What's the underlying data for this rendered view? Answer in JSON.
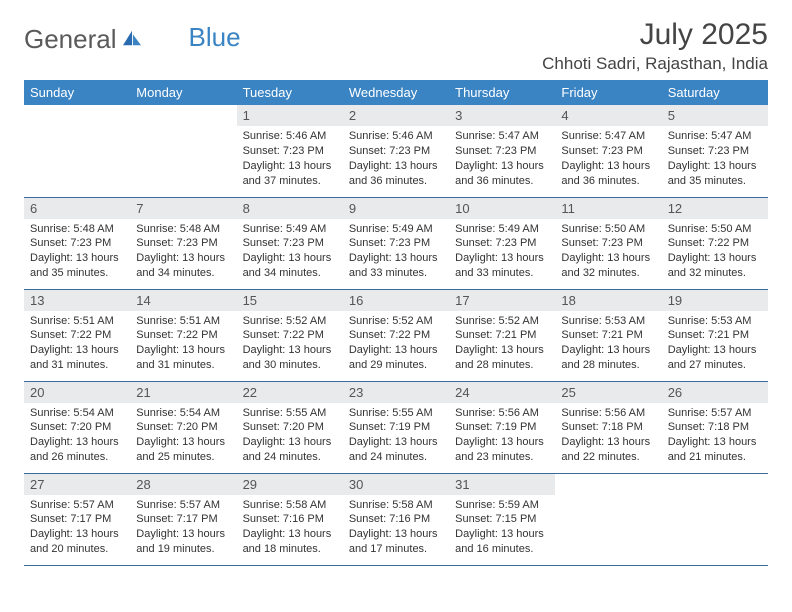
{
  "logo": {
    "text1": "General",
    "text2": "Blue"
  },
  "title": "July 2025",
  "location": "Chhoti Sadri, Rajasthan, India",
  "colors": {
    "header_bg": "#3a84c4",
    "header_text": "#ffffff",
    "daynum_bg": "#e9eaeb",
    "row_border": "#3a6a9a",
    "page_bg": "#ffffff",
    "text": "#333333",
    "logo_gray": "#5a5a5a",
    "logo_blue": "#3a84c4"
  },
  "weekdays": [
    "Sunday",
    "Monday",
    "Tuesday",
    "Wednesday",
    "Thursday",
    "Friday",
    "Saturday"
  ],
  "layout": {
    "first_weekday_index": 2,
    "days_in_month": 31,
    "columns": 7,
    "rows": 5
  },
  "days": {
    "1": {
      "sunrise": "5:46 AM",
      "sunset": "7:23 PM",
      "daylight": "13 hours and 37 minutes."
    },
    "2": {
      "sunrise": "5:46 AM",
      "sunset": "7:23 PM",
      "daylight": "13 hours and 36 minutes."
    },
    "3": {
      "sunrise": "5:47 AM",
      "sunset": "7:23 PM",
      "daylight": "13 hours and 36 minutes."
    },
    "4": {
      "sunrise": "5:47 AM",
      "sunset": "7:23 PM",
      "daylight": "13 hours and 36 minutes."
    },
    "5": {
      "sunrise": "5:47 AM",
      "sunset": "7:23 PM",
      "daylight": "13 hours and 35 minutes."
    },
    "6": {
      "sunrise": "5:48 AM",
      "sunset": "7:23 PM",
      "daylight": "13 hours and 35 minutes."
    },
    "7": {
      "sunrise": "5:48 AM",
      "sunset": "7:23 PM",
      "daylight": "13 hours and 34 minutes."
    },
    "8": {
      "sunrise": "5:49 AM",
      "sunset": "7:23 PM",
      "daylight": "13 hours and 34 minutes."
    },
    "9": {
      "sunrise": "5:49 AM",
      "sunset": "7:23 PM",
      "daylight": "13 hours and 33 minutes."
    },
    "10": {
      "sunrise": "5:49 AM",
      "sunset": "7:23 PM",
      "daylight": "13 hours and 33 minutes."
    },
    "11": {
      "sunrise": "5:50 AM",
      "sunset": "7:23 PM",
      "daylight": "13 hours and 32 minutes."
    },
    "12": {
      "sunrise": "5:50 AM",
      "sunset": "7:22 PM",
      "daylight": "13 hours and 32 minutes."
    },
    "13": {
      "sunrise": "5:51 AM",
      "sunset": "7:22 PM",
      "daylight": "13 hours and 31 minutes."
    },
    "14": {
      "sunrise": "5:51 AM",
      "sunset": "7:22 PM",
      "daylight": "13 hours and 31 minutes."
    },
    "15": {
      "sunrise": "5:52 AM",
      "sunset": "7:22 PM",
      "daylight": "13 hours and 30 minutes."
    },
    "16": {
      "sunrise": "5:52 AM",
      "sunset": "7:22 PM",
      "daylight": "13 hours and 29 minutes."
    },
    "17": {
      "sunrise": "5:52 AM",
      "sunset": "7:21 PM",
      "daylight": "13 hours and 28 minutes."
    },
    "18": {
      "sunrise": "5:53 AM",
      "sunset": "7:21 PM",
      "daylight": "13 hours and 28 minutes."
    },
    "19": {
      "sunrise": "5:53 AM",
      "sunset": "7:21 PM",
      "daylight": "13 hours and 27 minutes."
    },
    "20": {
      "sunrise": "5:54 AM",
      "sunset": "7:20 PM",
      "daylight": "13 hours and 26 minutes."
    },
    "21": {
      "sunrise": "5:54 AM",
      "sunset": "7:20 PM",
      "daylight": "13 hours and 25 minutes."
    },
    "22": {
      "sunrise": "5:55 AM",
      "sunset": "7:20 PM",
      "daylight": "13 hours and 24 minutes."
    },
    "23": {
      "sunrise": "5:55 AM",
      "sunset": "7:19 PM",
      "daylight": "13 hours and 24 minutes."
    },
    "24": {
      "sunrise": "5:56 AM",
      "sunset": "7:19 PM",
      "daylight": "13 hours and 23 minutes."
    },
    "25": {
      "sunrise": "5:56 AM",
      "sunset": "7:18 PM",
      "daylight": "13 hours and 22 minutes."
    },
    "26": {
      "sunrise": "5:57 AM",
      "sunset": "7:18 PM",
      "daylight": "13 hours and 21 minutes."
    },
    "27": {
      "sunrise": "5:57 AM",
      "sunset": "7:17 PM",
      "daylight": "13 hours and 20 minutes."
    },
    "28": {
      "sunrise": "5:57 AM",
      "sunset": "7:17 PM",
      "daylight": "13 hours and 19 minutes."
    },
    "29": {
      "sunrise": "5:58 AM",
      "sunset": "7:16 PM",
      "daylight": "13 hours and 18 minutes."
    },
    "30": {
      "sunrise": "5:58 AM",
      "sunset": "7:16 PM",
      "daylight": "13 hours and 17 minutes."
    },
    "31": {
      "sunrise": "5:59 AM",
      "sunset": "7:15 PM",
      "daylight": "13 hours and 16 minutes."
    }
  },
  "labels": {
    "sunrise": "Sunrise:",
    "sunset": "Sunset:",
    "daylight": "Daylight:"
  }
}
